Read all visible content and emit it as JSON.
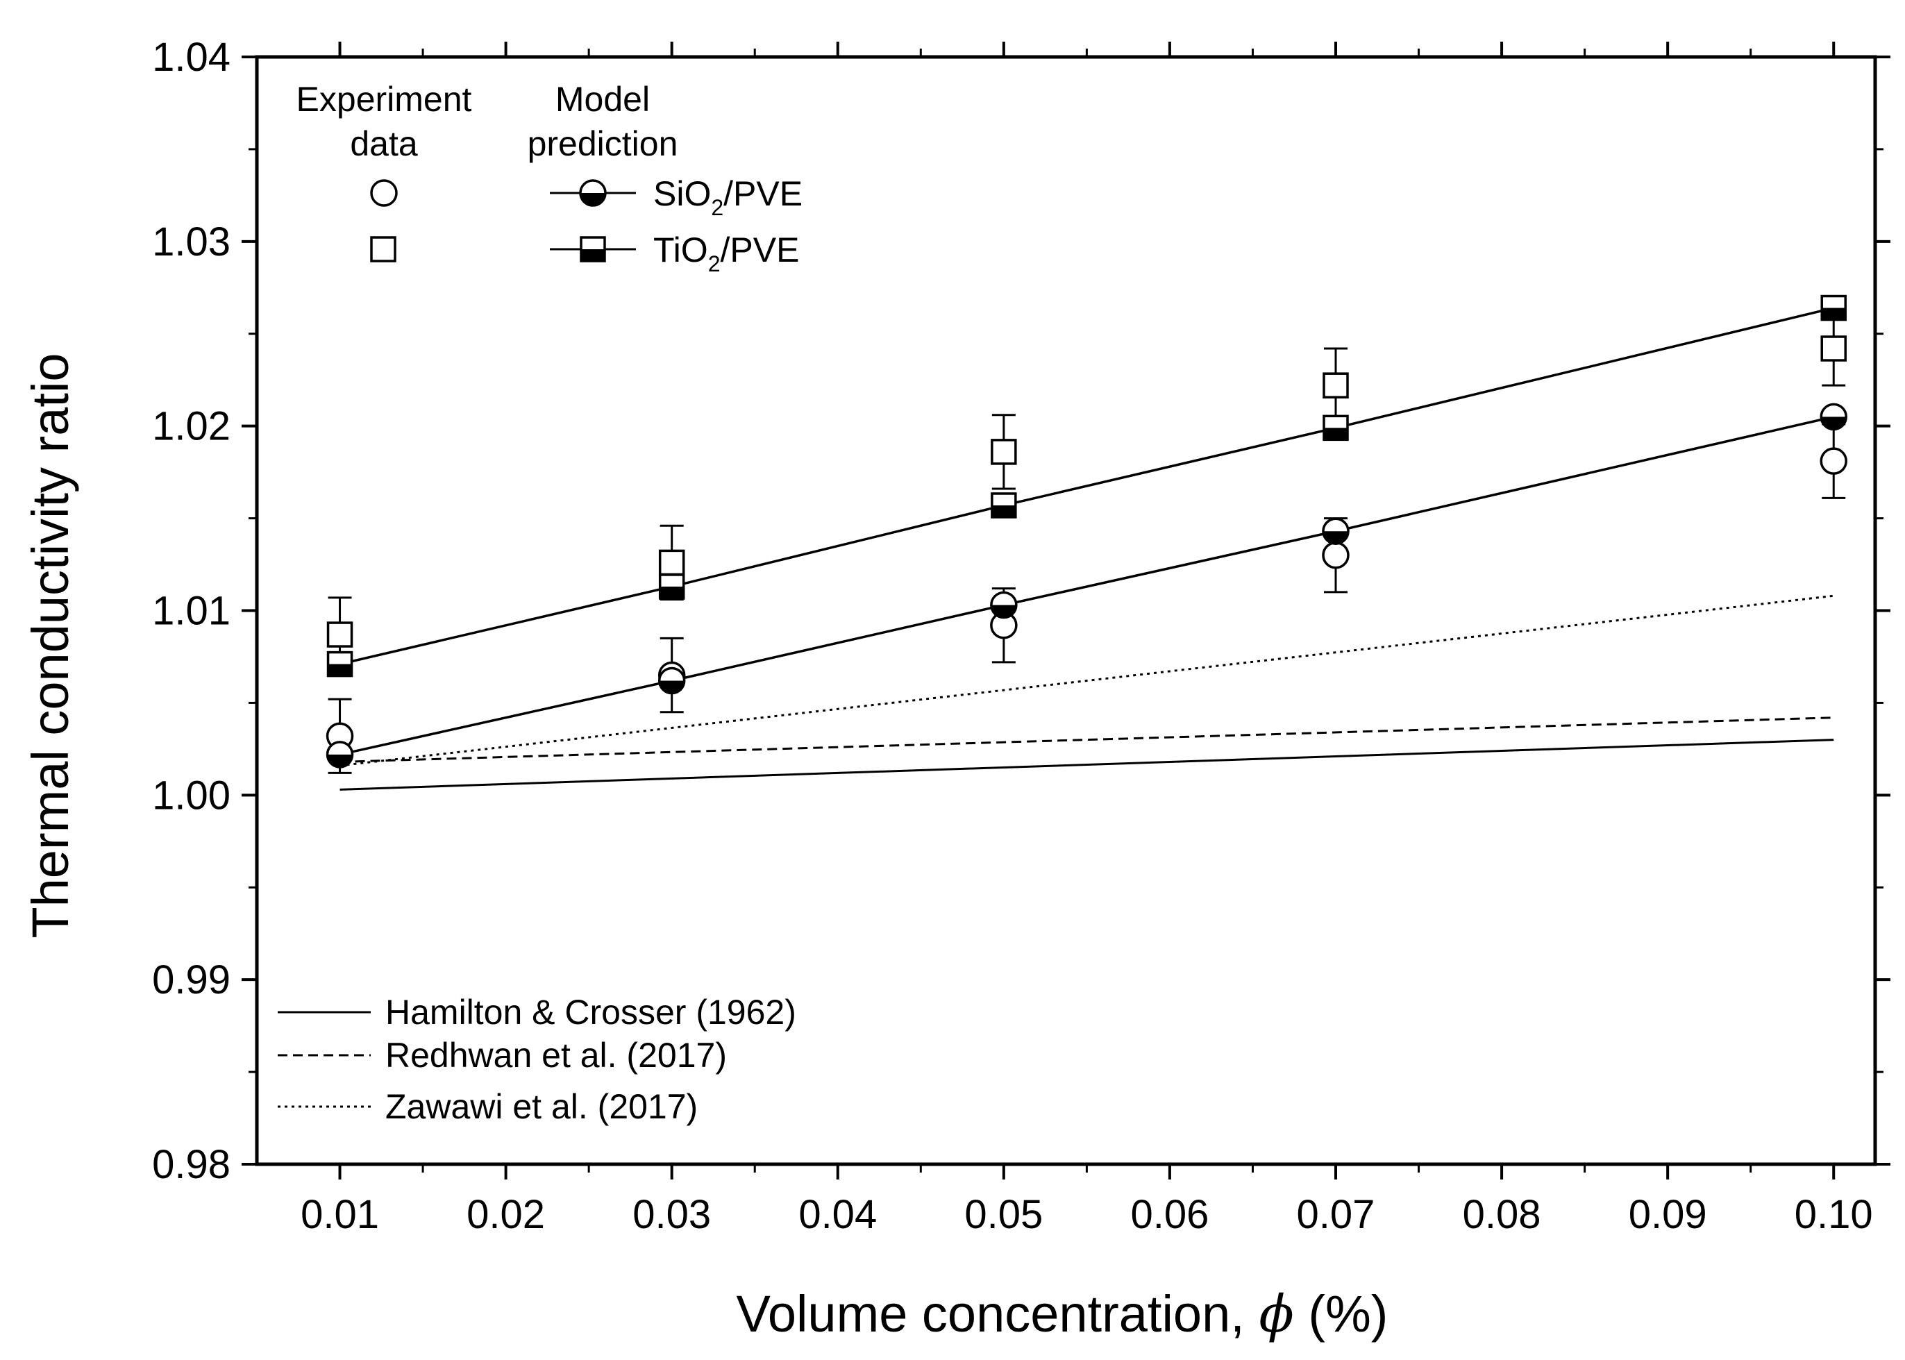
{
  "chart_data": {
    "type": "scatter",
    "title": "",
    "xlabel": "Volume concentration, ",
    "xlabel_symbol": "ϕ",
    "xlabel_unit": " (%)",
    "ylabel": "Thermal conductivity ratio",
    "xlim": [
      0.005,
      0.1025
    ],
    "ylim": [
      0.98,
      1.04
    ],
    "x_ticks": [
      0.01,
      0.02,
      0.03,
      0.04,
      0.05,
      0.06,
      0.07,
      0.08,
      0.09,
      0.1
    ],
    "x_tick_labels": [
      "0.01",
      "0.02",
      "0.03",
      "0.04",
      "0.05",
      "0.06",
      "0.07",
      "0.08",
      "0.09",
      "0.10"
    ],
    "y_ticks": [
      0.98,
      0.99,
      1.0,
      1.01,
      1.02,
      1.03,
      1.04
    ],
    "y_tick_labels": [
      "0.98",
      "0.99",
      "1.00",
      "1.01",
      "1.02",
      "1.03",
      "1.04"
    ],
    "grid": false,
    "experiment": [
      {
        "name": "SiO2/PVE",
        "marker": "circle-open",
        "x": [
          0.01,
          0.03,
          0.05,
          0.07,
          0.1
        ],
        "y": [
          1.0032,
          1.0065,
          1.0092,
          1.013,
          1.0181
        ],
        "err": [
          0.002,
          0.002,
          0.002,
          0.002,
          0.002
        ]
      },
      {
        "name": "TiO2/PVE",
        "marker": "square-open",
        "x": [
          0.01,
          0.03,
          0.05,
          0.07,
          0.1
        ],
        "y": [
          1.0087,
          1.0126,
          1.0186,
          1.0222,
          1.0242
        ],
        "err": [
          0.002,
          0.002,
          0.002,
          0.002,
          0.002
        ]
      }
    ],
    "model": [
      {
        "name": "SiO2/PVE",
        "marker": "circle-half",
        "x": [
          0.01,
          0.03,
          0.05,
          0.07,
          0.1
        ],
        "y": [
          1.0022,
          1.0062,
          1.0103,
          1.0143,
          1.0205
        ]
      },
      {
        "name": "TiO2/PVE",
        "marker": "square-half",
        "x": [
          0.01,
          0.03,
          0.05,
          0.07,
          0.1
        ],
        "y": [
          1.0071,
          1.0113,
          1.0157,
          1.0199,
          1.0264
        ]
      }
    ],
    "reference_lines": [
      {
        "name": "Hamilton & Crosser (1962)",
        "style": "solid",
        "x": [
          0.01,
          0.1
        ],
        "y": [
          1.0003,
          1.003
        ]
      },
      {
        "name": "Redhwan et al. (2017)",
        "style": "dashed",
        "x": [
          0.01,
          0.1
        ],
        "y": [
          1.0018,
          1.0042
        ]
      },
      {
        "name": "Zawawi et al. (2017)",
        "style": "dotted",
        "x": [
          0.01,
          0.1
        ],
        "y": [
          1.0016,
          1.0108
        ]
      }
    ]
  },
  "legend": {
    "experiment_header_1": "Experiment",
    "experiment_header_2": "data",
    "model_header_1": "Model",
    "model_header_2": "prediction",
    "sio2": {
      "base": "SiO",
      "sub": "2",
      "rest": "/PVE"
    },
    "tio2": {
      "base": "TiO",
      "sub": "2",
      "rest": "/PVE"
    }
  },
  "colors": {
    "ink": "#000000",
    "paper": "#ffffff"
  }
}
